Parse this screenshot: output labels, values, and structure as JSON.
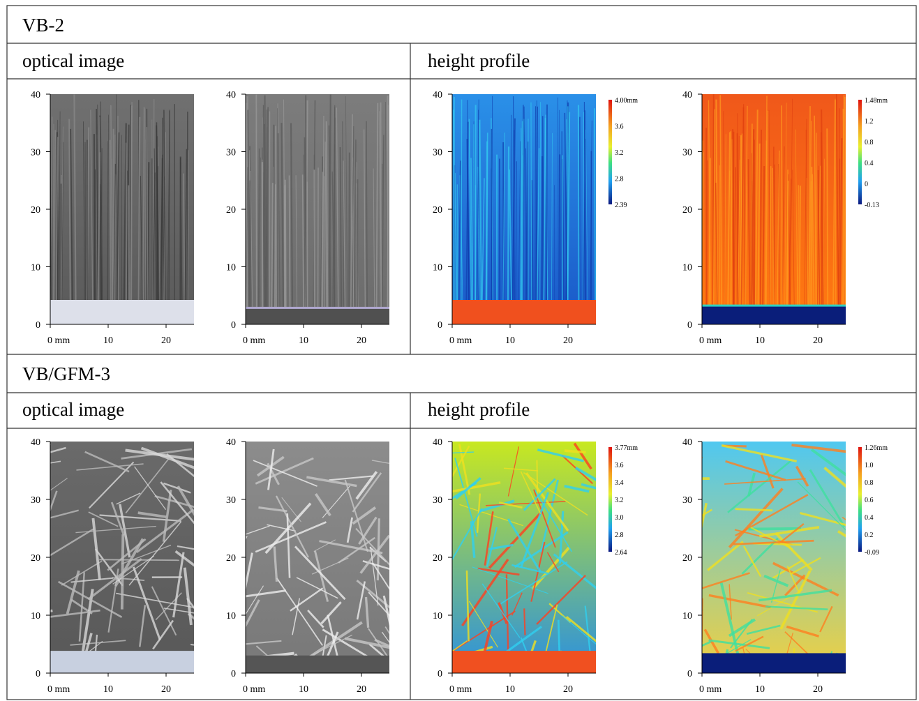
{
  "sections": [
    {
      "title": "VB-2",
      "columns": [
        {
          "header": "optical image",
          "panels": [
            {
              "yticks": [
                "40",
                "30",
                "20",
                "10",
                "0"
              ],
              "xticks": [
                "0 mm",
                "10",
                "20"
              ]
            },
            {
              "yticks": [
                "40",
                "30",
                "20",
                "10",
                "0"
              ],
              "xticks": [
                "0 mm",
                "10",
                "20"
              ]
            }
          ]
        },
        {
          "header": "height profile",
          "panels": [
            {
              "yticks": [
                "40",
                "30",
                "20",
                "10",
                "0"
              ],
              "xticks": [
                "0 mm",
                "10",
                "20"
              ],
              "colorbar": [
                "4.00mm",
                "3.6",
                "3.2",
                "2.8",
                "2.39"
              ]
            },
            {
              "yticks": [
                "40",
                "30",
                "20",
                "10",
                "0"
              ],
              "xticks": [
                "0 mm",
                "10",
                "20"
              ],
              "colorbar": [
                "1.48mm",
                "1.2",
                "0.8",
                "0.4",
                "0",
                "-0.13"
              ]
            }
          ]
        }
      ]
    },
    {
      "title": "VB/GFM-3",
      "columns": [
        {
          "header": "optical image",
          "panels": [
            {
              "yticks": [
                "40",
                "30",
                "20",
                "10",
                "0"
              ],
              "xticks": [
                "0 mm",
                "10",
                "20"
              ]
            },
            {
              "yticks": [
                "40",
                "30",
                "20",
                "10",
                "0"
              ],
              "xticks": [
                "0 mm",
                "10",
                "20"
              ]
            }
          ]
        },
        {
          "header": "height profile",
          "panels": [
            {
              "yticks": [
                "40",
                "30",
                "20",
                "10",
                "0"
              ],
              "xticks": [
                "0 mm",
                "10",
                "20"
              ],
              "colorbar": [
                "3.77mm",
                "3.6",
                "3.4",
                "3.2",
                "3.0",
                "2.8",
                "2.64"
              ]
            },
            {
              "yticks": [
                "40",
                "30",
                "20",
                "10",
                "0"
              ],
              "xticks": [
                "0 mm",
                "10",
                "20"
              ],
              "colorbar": [
                "1.26mm",
                "1.0",
                "0.8",
                "0.6",
                "0.4",
                "0.2",
                "-0.09"
              ]
            }
          ]
        }
      ]
    }
  ]
}
